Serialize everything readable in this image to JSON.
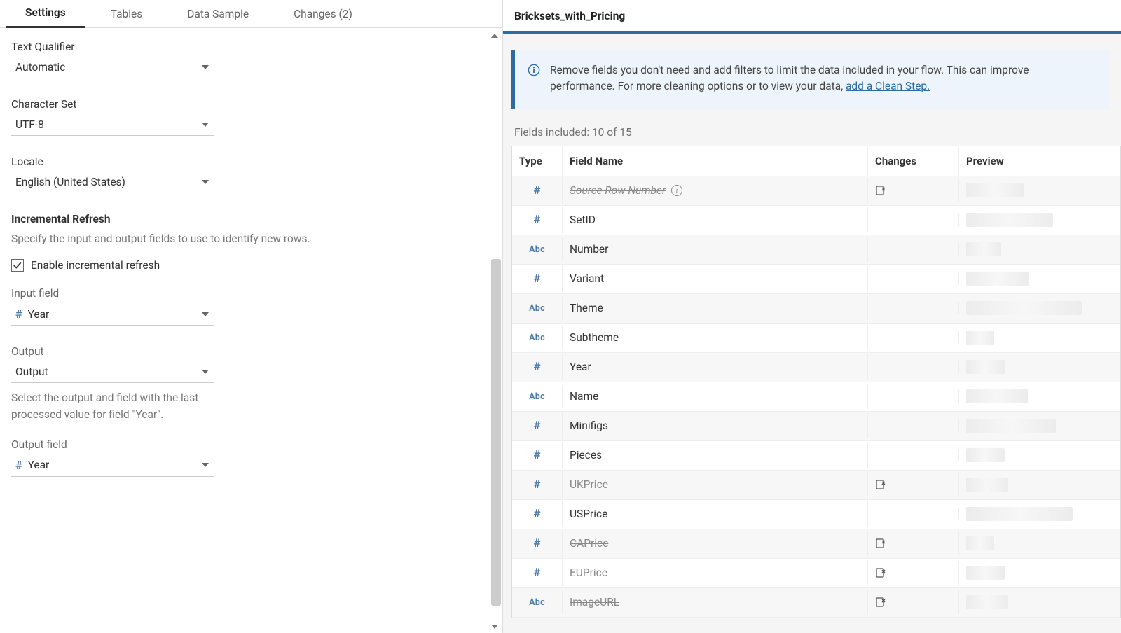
{
  "tabs": {
    "settings": "Settings",
    "tables": "Tables",
    "data_sample": "Data Sample",
    "changes": "Changes (2)"
  },
  "settings": {
    "text_qualifier_label": "Text Qualifier",
    "text_qualifier_value": "Automatic",
    "charset_label": "Character Set",
    "charset_value": "UTF-8",
    "locale_label": "Locale",
    "locale_value": "English (United States)",
    "incr_heading": "Incremental Refresh",
    "incr_desc": "Specify the input and output fields to use to identify new rows.",
    "enable_incr_label": "Enable incremental refresh",
    "enable_incr_checked": true,
    "input_field_label": "Input field",
    "input_field_value": "Year",
    "output_label": "Output",
    "output_value": "Output",
    "output_hint": "Select the output and field with the last processed value for field \"Year\".",
    "output_field_label": "Output field",
    "output_field_value": "Year"
  },
  "right": {
    "title": "Bricksets_with_Pricing",
    "banner_text": "Remove fields you don't need and add filters to limit the data included in your flow. This can improve performance. For more cleaning options or to view your data, ",
    "banner_link": "add a Clean Step.",
    "fields_included": "Fields included: 10 of 15",
    "col_type": "Type",
    "col_field": "Field Name",
    "col_changes": "Changes",
    "col_preview": "Preview",
    "rows": [
      {
        "type": "hash",
        "name": "Source Row Number",
        "removed": true,
        "src": true,
        "info": true,
        "change_remove": true,
        "preview_w": 82
      },
      {
        "type": "hash",
        "name": "SetID",
        "preview_w": 124
      },
      {
        "type": "abc",
        "name": "Number",
        "preview_w": 50
      },
      {
        "type": "hash",
        "name": "Variant",
        "preview_w": 90
      },
      {
        "type": "abc",
        "name": "Theme",
        "preview_w": 165
      },
      {
        "type": "abc",
        "name": "Subtheme",
        "preview_w": 40
      },
      {
        "type": "hash",
        "name": "Year",
        "preview_w": 55
      },
      {
        "type": "abc",
        "name": "Name",
        "preview_w": 88
      },
      {
        "type": "hash",
        "name": "Minifigs",
        "preview_w": 128
      },
      {
        "type": "hash",
        "name": "Pieces",
        "preview_w": 55
      },
      {
        "type": "hash",
        "name": "UKPrice",
        "removed": true,
        "change_remove": true,
        "preview_w": 60
      },
      {
        "type": "hash",
        "name": "USPrice",
        "preview_w": 152
      },
      {
        "type": "hash",
        "name": "CAPrice",
        "removed": true,
        "change_remove": true,
        "preview_w": 40
      },
      {
        "type": "hash",
        "name": "EUPrice",
        "removed": true,
        "change_remove": true,
        "preview_w": 55
      },
      {
        "type": "abc",
        "name": "ImageURL",
        "removed": true,
        "change_remove": true,
        "preview_w": 60
      }
    ]
  },
  "colors": {
    "accent": "#2d6ca2",
    "banner_bg": "#eef4fb",
    "type_icon": "#4b7aa8",
    "muted": "#777"
  }
}
